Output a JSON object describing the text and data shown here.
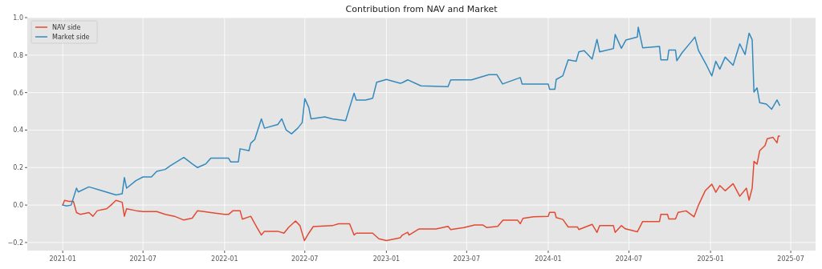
{
  "chart_data": {
    "type": "line",
    "title": "Contribution from NAV and Market",
    "legend": "top left",
    "grid": true,
    "xlim": [
      "2020-10-13",
      "2025-08-26"
    ],
    "ylim": [
      -0.243,
      1.0
    ],
    "xticks": [
      "2021-01",
      "2021-07",
      "2022-01",
      "2022-07",
      "2023-01",
      "2023-07",
      "2024-01",
      "2024-07",
      "2025-01",
      "2025-07"
    ],
    "yticks": [
      {
        "value": -0.2,
        "label": "−0.2"
      },
      {
        "value": 0,
        "label": "0.0"
      },
      {
        "value": 0.2,
        "label": "0.2"
      },
      {
        "value": 0.4,
        "label": "0.4"
      },
      {
        "value": 0.6,
        "label": "0.6"
      },
      {
        "value": 0.8,
        "label": "0.8"
      },
      {
        "value": 1.0,
        "label": "1.0"
      }
    ],
    "series": [
      {
        "name": "NAV side",
        "color": "#e24a33",
        "x": [
          "2021-01-01",
          "2021-01-05",
          "2021-01-15",
          "2021-01-25",
          "2021-02-01",
          "2021-02-10",
          "2021-03-01",
          "2021-03-10",
          "2021-03-20",
          "2021-04-10",
          "2021-04-20",
          "2021-05-01",
          "2021-05-15",
          "2021-05-20",
          "2021-05-25",
          "2021-06-15",
          "2021-07-01",
          "2021-08-01",
          "2021-08-20",
          "2021-09-10",
          "2021-10-01",
          "2021-10-20",
          "2021-11-01",
          "2021-12-01",
          "2022-01-01",
          "2022-01-10",
          "2022-01-20",
          "2022-02-05",
          "2022-02-10",
          "2022-03-01",
          "2022-03-15",
          "2022-03-25",
          "2022-04-01",
          "2022-05-01",
          "2022-05-15",
          "2022-05-25",
          "2022-06-10",
          "2022-06-20",
          "2022-06-30",
          "2022-07-10",
          "2022-07-20",
          "2022-09-01",
          "2022-09-15",
          "2022-10-10",
          "2022-10-20",
          "2022-10-25",
          "2022-12-01",
          "2022-12-15",
          "2023-01-01",
          "2023-02-01",
          "2023-02-06",
          "2023-02-18",
          "2023-02-21",
          "2023-03-15",
          "2023-04-23",
          "2023-05-20",
          "2023-05-26",
          "2023-06-25",
          "2023-07-19",
          "2023-08-06",
          "2023-08-15",
          "2023-09-09",
          "2023-09-21",
          "2023-10-24",
          "2023-10-30",
          "2023-11-05",
          "2023-11-29",
          "2024-01-01",
          "2024-01-04",
          "2024-01-16",
          "2024-01-19",
          "2024-02-03",
          "2024-02-15",
          "2024-03-07",
          "2024-03-10",
          "2024-04-09",
          "2024-04-20",
          "2024-04-26",
          "2024-05-27",
          "2024-05-31",
          "2024-06-14",
          "2024-06-23",
          "2024-07-20",
          "2024-08-01",
          "2024-09-08",
          "2024-09-11",
          "2024-09-26",
          "2024-09-29",
          "2024-10-14",
          "2024-10-20",
          "2024-11-07",
          "2024-11-25",
          "2024-12-05",
          "2024-12-20",
          "2025-01-04",
          "2025-01-13",
          "2025-01-22",
          "2025-02-03",
          "2025-02-21",
          "2025-03-08",
          "2025-03-23",
          "2025-03-29",
          "2025-04-05",
          "2025-04-09",
          "2025-04-16",
          "2025-04-22",
          "2025-05-04",
          "2025-05-09",
          "2025-05-22",
          "2025-05-31",
          "2025-06-03",
          "2025-06-06"
        ],
        "values": [
          0.0,
          0.025,
          0.02,
          0.02,
          -0.04,
          -0.05,
          -0.04,
          -0.06,
          -0.03,
          -0.02,
          0.0,
          0.025,
          0.015,
          -0.06,
          -0.02,
          -0.03,
          -0.035,
          -0.035,
          -0.05,
          -0.06,
          -0.08,
          -0.07,
          -0.03,
          -0.04,
          -0.05,
          -0.05,
          -0.03,
          -0.03,
          -0.075,
          -0.06,
          -0.12,
          -0.16,
          -0.14,
          -0.14,
          -0.15,
          -0.12,
          -0.085,
          -0.11,
          -0.19,
          -0.15,
          -0.115,
          -0.11,
          -0.1,
          -0.1,
          -0.16,
          -0.15,
          -0.15,
          -0.18,
          -0.19,
          -0.175,
          -0.16,
          -0.145,
          -0.16,
          -0.128,
          -0.128,
          -0.114,
          -0.131,
          -0.12,
          -0.106,
          -0.106,
          -0.12,
          -0.114,
          -0.081,
          -0.081,
          -0.1,
          -0.071,
          -0.063,
          -0.06,
          -0.039,
          -0.039,
          -0.067,
          -0.077,
          -0.117,
          -0.117,
          -0.131,
          -0.103,
          -0.146,
          -0.11,
          -0.11,
          -0.146,
          -0.11,
          -0.127,
          -0.143,
          -0.088,
          -0.088,
          -0.05,
          -0.05,
          -0.074,
          -0.074,
          -0.039,
          -0.031,
          -0.063,
          0.0,
          0.076,
          0.111,
          0.068,
          0.104,
          0.076,
          0.114,
          0.047,
          0.09,
          0.026,
          0.09,
          0.233,
          0.218,
          0.29,
          0.318,
          0.354,
          0.361,
          0.332,
          0.368,
          0.368
        ]
      },
      {
        "name": "Market side",
        "color": "#348abd",
        "x": [
          "2021-01-01",
          "2021-01-10",
          "2021-01-20",
          "2021-02-01",
          "2021-02-05",
          "2021-03-01",
          "2021-04-01",
          "2021-05-01",
          "2021-05-15",
          "2021-05-20",
          "2021-05-25",
          "2021-06-15",
          "2021-07-01",
          "2021-07-20",
          "2021-08-01",
          "2021-08-20",
          "2021-09-01",
          "2021-10-01",
          "2021-10-20",
          "2021-11-01",
          "2021-11-20",
          "2021-12-01",
          "2022-01-10",
          "2022-01-15",
          "2022-02-01",
          "2022-02-05",
          "2022-02-25",
          "2022-03-01",
          "2022-03-10",
          "2022-03-25",
          "2022-04-01",
          "2022-05-01",
          "2022-05-10",
          "2022-05-20",
          "2022-06-01",
          "2022-06-15",
          "2022-06-25",
          "2022-07-01",
          "2022-07-10",
          "2022-07-15",
          "2022-08-15",
          "2022-09-01",
          "2022-10-01",
          "2022-10-10",
          "2022-10-20",
          "2022-10-25",
          "2022-11-15",
          "2022-12-01",
          "2022-12-10",
          "2023-01-01",
          "2023-02-01",
          "2023-02-06",
          "2023-02-18",
          "2023-03-20",
          "2023-05-20",
          "2023-05-26",
          "2023-07-12",
          "2023-08-20",
          "2023-09-07",
          "2023-09-20",
          "2023-10-30",
          "2023-11-03",
          "2024-01-01",
          "2024-01-04",
          "2024-01-16",
          "2024-01-19",
          "2024-02-03",
          "2024-02-15",
          "2024-03-04",
          "2024-03-10",
          "2024-03-22",
          "2024-04-09",
          "2024-04-20",
          "2024-04-26",
          "2024-05-27",
          "2024-05-31",
          "2024-06-14",
          "2024-06-24",
          "2024-07-20",
          "2024-07-22",
          "2024-08-01",
          "2024-09-08",
          "2024-09-11",
          "2024-09-26",
          "2024-09-29",
          "2024-10-14",
          "2024-10-17",
          "2024-10-29",
          "2024-11-17",
          "2024-11-27",
          "2024-12-05",
          "2024-12-23",
          "2025-01-04",
          "2025-01-13",
          "2025-01-22",
          "2025-02-03",
          "2025-02-21",
          "2025-03-08",
          "2025-03-20",
          "2025-03-29",
          "2025-04-05",
          "2025-04-09",
          "2025-04-16",
          "2025-04-22",
          "2025-05-07",
          "2025-05-19",
          "2025-05-31",
          "2025-06-06"
        ],
        "values": [
          0.0,
          -0.005,
          0.0,
          0.09,
          0.07,
          0.097,
          0.075,
          0.054,
          0.06,
          0.147,
          0.09,
          0.13,
          0.15,
          0.15,
          0.18,
          0.19,
          0.21,
          0.254,
          0.22,
          0.2,
          0.22,
          0.25,
          0.25,
          0.23,
          0.23,
          0.3,
          0.29,
          0.33,
          0.35,
          0.46,
          0.41,
          0.43,
          0.46,
          0.4,
          0.38,
          0.41,
          0.44,
          0.568,
          0.52,
          0.46,
          0.47,
          0.46,
          0.45,
          0.52,
          0.596,
          0.56,
          0.56,
          0.57,
          0.655,
          0.67,
          0.65,
          0.653,
          0.668,
          0.636,
          0.632,
          0.668,
          0.668,
          0.696,
          0.696,
          0.646,
          0.68,
          0.646,
          0.646,
          0.618,
          0.618,
          0.67,
          0.69,
          0.775,
          0.767,
          0.817,
          0.824,
          0.779,
          0.884,
          0.817,
          0.835,
          0.91,
          0.836,
          0.88,
          0.896,
          0.949,
          0.839,
          0.846,
          0.775,
          0.775,
          0.827,
          0.827,
          0.77,
          0.813,
          0.867,
          0.896,
          0.824,
          0.746,
          0.689,
          0.767,
          0.725,
          0.789,
          0.746,
          0.86,
          0.803,
          0.917,
          0.882,
          0.603,
          0.625,
          0.546,
          0.539,
          0.511,
          0.561,
          0.532
        ]
      }
    ]
  }
}
